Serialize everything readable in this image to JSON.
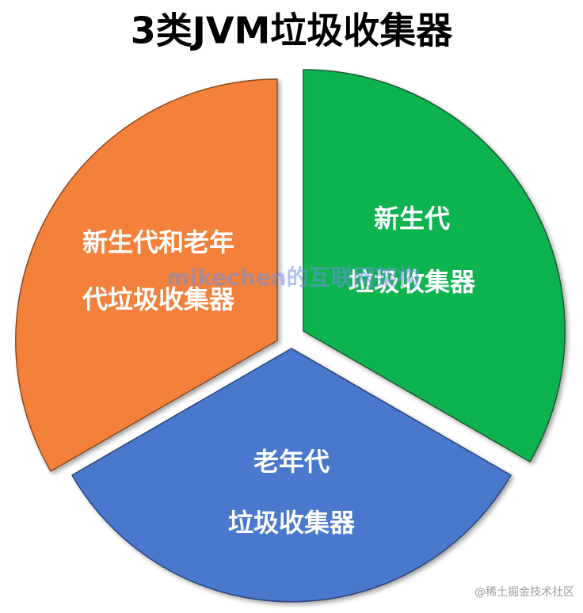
{
  "header": {
    "title": "3类JVM垃圾收集器"
  },
  "nodes": [
    {
      "lines": [
        "新生代",
        "垃圾收集器"
      ]
    },
    {
      "lines": [
        "新生代和老年",
        "代垃圾收集器"
      ]
    },
    {
      "lines": [
        "老年代",
        "垃圾收集器"
      ]
    }
  ],
  "watermark": "mikechen的互联网架构",
  "footer": "@稀土掘金技术社区"
}
